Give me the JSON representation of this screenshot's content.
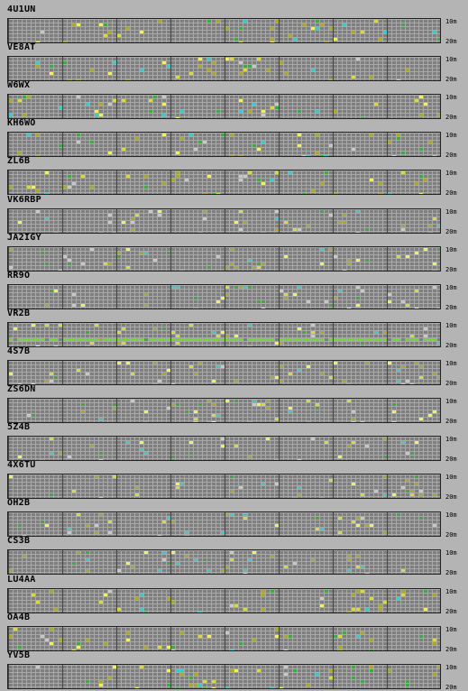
{
  "stations": [
    {
      "call": "4U1UN"
    },
    {
      "call": "VE8AT"
    },
    {
      "call": "W6WX"
    },
    {
      "call": "KH6WO"
    },
    {
      "call": "ZL6B"
    },
    {
      "call": "VK6RBP"
    },
    {
      "call": "JA2IGY"
    },
    {
      "call": "RR9O"
    },
    {
      "call": "VR2B"
    },
    {
      "call": "4S7B"
    },
    {
      "call": "ZS6DN"
    },
    {
      "call": "5Z4B"
    },
    {
      "call": "4X6TU"
    },
    {
      "call": "OH2B"
    },
    {
      "call": "CS3B"
    },
    {
      "call": "LU4AA"
    },
    {
      "call": "OA4B"
    },
    {
      "call": "YV5B"
    }
  ],
  "band_labels": {
    "top": "10m",
    "bottom": "20m"
  },
  "colors": {
    "background": "#b4b4b4",
    "grid": "#7f7f7f",
    "signal_weak": "#a8a830",
    "signal_medium": "#d8d840",
    "signal_strong": "#f0f060",
    "signal_cyan": "#40c8c8",
    "signal_green": "#40a840",
    "signal_lime": "#66dd22",
    "signal_gray": "#c8c8c8"
  }
}
